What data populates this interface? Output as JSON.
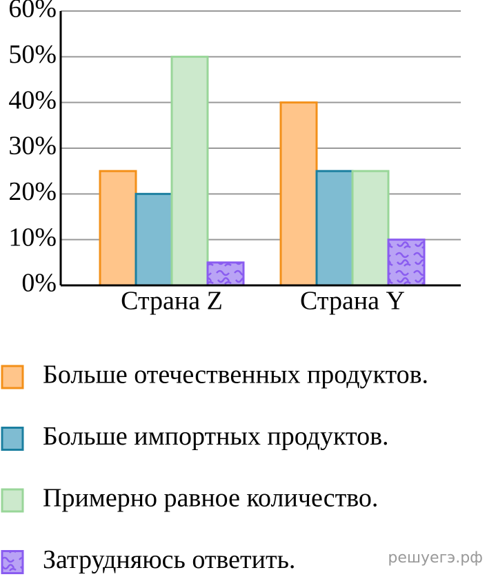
{
  "chart_data": {
    "type": "bar",
    "categories": [
      "Страна Z",
      "Страна Y"
    ],
    "series": [
      {
        "name": "Больше отечественных продуктов.",
        "color": "#ffc58a",
        "stroke": "#f39019",
        "values": [
          25,
          40
        ]
      },
      {
        "name": "Больше импортных продуктов.",
        "color": "#7fbcd2",
        "stroke": "#1b7fa0",
        "values": [
          20,
          25
        ]
      },
      {
        "name": "Примерно равное количество.",
        "color": "#cce9cc",
        "stroke": "#99d699",
        "values": [
          50,
          25
        ]
      },
      {
        "name": "Затрудняюсь ответить.",
        "color": "#b9a3f5",
        "stroke": "#8a5cf0",
        "pattern": true,
        "values": [
          5,
          10
        ]
      }
    ],
    "ylim": [
      0,
      60
    ],
    "yticks": [
      {
        "value": 0,
        "label": "0%"
      },
      {
        "value": 10,
        "label": "10%"
      },
      {
        "value": 20,
        "label": "20%"
      },
      {
        "value": 30,
        "label": "30%"
      },
      {
        "value": 40,
        "label": "40%"
      },
      {
        "value": 50,
        "label": "50%"
      },
      {
        "value": 60,
        "label": "60%"
      }
    ],
    "grid": true,
    "legend": "bottom",
    "watermark": "решуегэ.рф"
  }
}
